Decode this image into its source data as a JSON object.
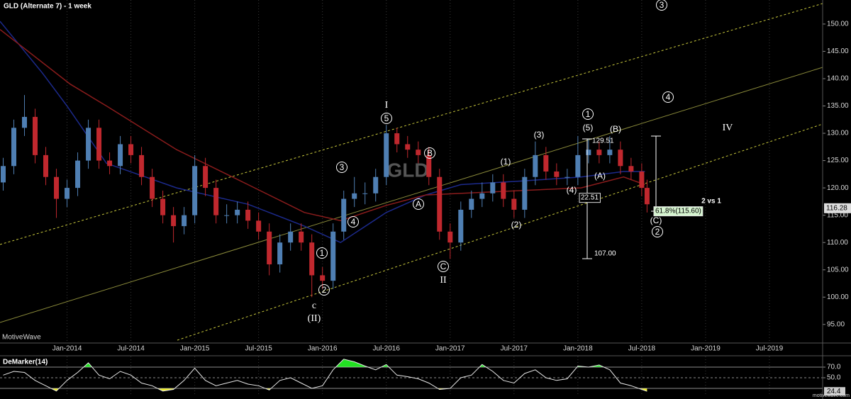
{
  "chart_data": [
    {
      "type": "candlestick",
      "title": "GLD (Alternate 7) - 1 week",
      "symbol": "GLD",
      "source": "MotiveWave",
      "website": "motivewave.com",
      "x": [
        -6,
        -5,
        -4,
        -3,
        -2,
        -1,
        0,
        1,
        2,
        3,
        4,
        5,
        6,
        7,
        8,
        9,
        10,
        11,
        12,
        13,
        14,
        15,
        16,
        17,
        18,
        19,
        20,
        21,
        22,
        23,
        24,
        25,
        26,
        27,
        28,
        29,
        30,
        31,
        32,
        33,
        34,
        35,
        36,
        37,
        38,
        39,
        40,
        41,
        42,
        43,
        44,
        45,
        46,
        47,
        48,
        49,
        50,
        51,
        52,
        53,
        54,
        54.5
      ],
      "open": [
        121,
        124,
        131,
        133,
        126,
        122,
        118,
        120,
        125,
        131,
        125,
        124,
        128,
        126,
        122,
        118,
        115,
        113,
        115,
        124,
        120,
        115,
        115,
        116,
        114,
        112,
        106,
        110,
        112,
        110,
        104,
        103,
        112,
        118,
        119,
        119,
        122,
        130,
        128,
        127,
        126,
        122,
        112,
        110,
        116,
        118,
        119,
        121,
        118,
        116,
        122,
        126,
        123,
        122,
        122,
        126,
        127,
        126,
        127,
        124,
        123,
        120
      ],
      "high": [
        125.5,
        132.5,
        137,
        134.5,
        127.5,
        123.5,
        121.5,
        126.5,
        132.5,
        132.5,
        126.5,
        129.5,
        129.5,
        127.5,
        123.5,
        119.5,
        116.5,
        116.5,
        126,
        125.5,
        121.5,
        117,
        117.5,
        117.5,
        115.5,
        113.5,
        111.5,
        113.5,
        113.5,
        111.5,
        105.5,
        113.5,
        119.5,
        122,
        121,
        123.5,
        131.5,
        131,
        129.5,
        128.5,
        127.5,
        123.5,
        113.5,
        117.5,
        119.5,
        121,
        122.5,
        122.5,
        119.5,
        123.5,
        128.5,
        127.5,
        124.5,
        123.5,
        129.5,
        129,
        128.5,
        129.5,
        128.5,
        125.5,
        124.5,
        121.5
      ],
      "low": [
        119.5,
        122.5,
        129.5,
        124.5,
        120.5,
        114.5,
        116.5,
        118.5,
        123.5,
        123.5,
        122.5,
        122.5,
        124.5,
        120.5,
        116.5,
        113.5,
        110,
        111.5,
        113.5,
        118.5,
        113.5,
        113.5,
        113.5,
        112.5,
        110.5,
        104,
        104.5,
        108.5,
        108.5,
        100,
        101.5,
        101.5,
        110.5,
        116.5,
        117,
        117.5,
        120.5,
        126.5,
        125.5,
        124.5,
        120.5,
        110.5,
        107,
        108.5,
        114.5,
        116.5,
        117.5,
        116.5,
        114.5,
        114.5,
        120.5,
        121.5,
        120.5,
        120.5,
        120.5,
        124.5,
        124.5,
        124.5,
        122.5,
        121.5,
        118.5,
        115.5
      ],
      "close": [
        124,
        131,
        133,
        126,
        122,
        118,
        120,
        125,
        131,
        125,
        124,
        128,
        126,
        122,
        118,
        115,
        113,
        115,
        124,
        120,
        115,
        115,
        116,
        114,
        112,
        106,
        110,
        112,
        110,
        104,
        103,
        112,
        118,
        119,
        119,
        122,
        130,
        128,
        127,
        126,
        122,
        112,
        110,
        116,
        118,
        119,
        121,
        118,
        116,
        122,
        126,
        123,
        122,
        122,
        126,
        127,
        126,
        127,
        124,
        123,
        120,
        117
      ],
      "up_color": "#4f7fb3",
      "down_color": "#c0282e",
      "series": [
        {
          "color": "#1c2a8c",
          "x": [
            -6.3,
            -2.3,
            0,
            3.7,
            10.3,
            17,
            22.3,
            25.7,
            30,
            33.7,
            37,
            43,
            48.3,
            52.3,
            54.3
          ],
          "values": [
            150.5,
            141,
            135,
            124.5,
            120,
            117,
            113,
            110,
            115.5,
            118.7,
            120.6,
            121.3,
            122,
            123,
            123
          ]
        },
        {
          "color": "#8b1c1c",
          "x": [
            -6.3,
            0.3,
            3.7,
            10.3,
            17,
            22.3,
            25.7,
            30,
            33.7,
            40.3,
            48.3,
            52.3,
            54.3
          ],
          "values": [
            149,
            139,
            135,
            127,
            120.6,
            115.5,
            114,
            116.8,
            118.7,
            119.3,
            120,
            122,
            120.6
          ]
        }
      ],
      "last_price": 116.28,
      "xlim": [
        -6.3,
        71
      ],
      "xticks": [
        {
          "value": 0,
          "label": "Jan-2014"
        },
        {
          "value": 6,
          "label": "Jul-2014"
        },
        {
          "value": 12,
          "label": "Jan-2015"
        },
        {
          "value": 18,
          "label": "Jul-2015"
        },
        {
          "value": 24,
          "label": "Jan-2016"
        },
        {
          "value": 30,
          "label": "Jul-2016"
        },
        {
          "value": 36,
          "label": "Jan-2017"
        },
        {
          "value": 42,
          "label": "Jul-2017"
        },
        {
          "value": 48,
          "label": "Jan-2018"
        },
        {
          "value": 54,
          "label": "Jul-2018"
        },
        {
          "value": 60,
          "label": "Jan-2019"
        },
        {
          "value": 66,
          "label": "Jul-2019"
        }
      ],
      "ylim": [
        91.6,
        154.4
      ],
      "yticks": [
        {
          "value": 150,
          "label": "150.00"
        },
        {
          "value": 145,
          "label": "145.00"
        },
        {
          "value": 140,
          "label": "140.00"
        },
        {
          "value": 135,
          "label": "135.00"
        },
        {
          "value": 130,
          "label": "130.00"
        },
        {
          "value": 125,
          "label": "125.00"
        },
        {
          "value": 120,
          "label": "120.00"
        },
        {
          "value": 115,
          "label": "115.00"
        },
        {
          "value": 110,
          "label": "110.00"
        },
        {
          "value": 105,
          "label": "105.00"
        },
        {
          "value": 100,
          "label": "100.00"
        },
        {
          "value": 95,
          "label": "95.00"
        }
      ],
      "xgrid": true,
      "wave_labels": [
        "3",
        "4",
        "IV",
        "1",
        "(5)",
        "(B)",
        "(A)",
        "(4)",
        "(3)",
        "(1)",
        "(2)",
        "5",
        "I",
        "B",
        "A",
        "3",
        "4",
        "1",
        "2",
        "c",
        "(II)",
        "C",
        "II",
        "(C)",
        "2"
      ],
      "notes": [
        "129.51",
        "22.51",
        "107.00",
        "2 vs 1",
        "61.8%(115.60)"
      ]
    },
    {
      "type": "line",
      "title": "DeMarker(14)",
      "color": "#e8e8e8",
      "values": [
        55,
        62,
        60,
        45,
        35,
        25,
        45,
        60,
        78,
        55,
        48,
        62,
        55,
        40,
        35,
        25,
        28,
        45,
        68,
        45,
        35,
        40,
        45,
        38,
        35,
        27,
        45,
        50,
        40,
        30,
        35,
        65,
        85,
        80,
        72,
        65,
        75,
        55,
        52,
        48,
        40,
        28,
        30,
        50,
        55,
        75,
        62,
        45,
        40,
        58,
        65,
        50,
        45,
        48,
        72,
        70,
        74,
        65,
        40,
        35,
        28,
        24.4
      ],
      "ylim": [
        16.7,
        90
      ],
      "yticks": [
        {
          "value": 70,
          "label": "70.0"
        },
        {
          "value": 50,
          "label": "50.0"
        }
      ],
      "levels": [
        70,
        50,
        30
      ],
      "high_fill": "#22e022",
      "low_fill": "#f0f020"
    }
  ]
}
